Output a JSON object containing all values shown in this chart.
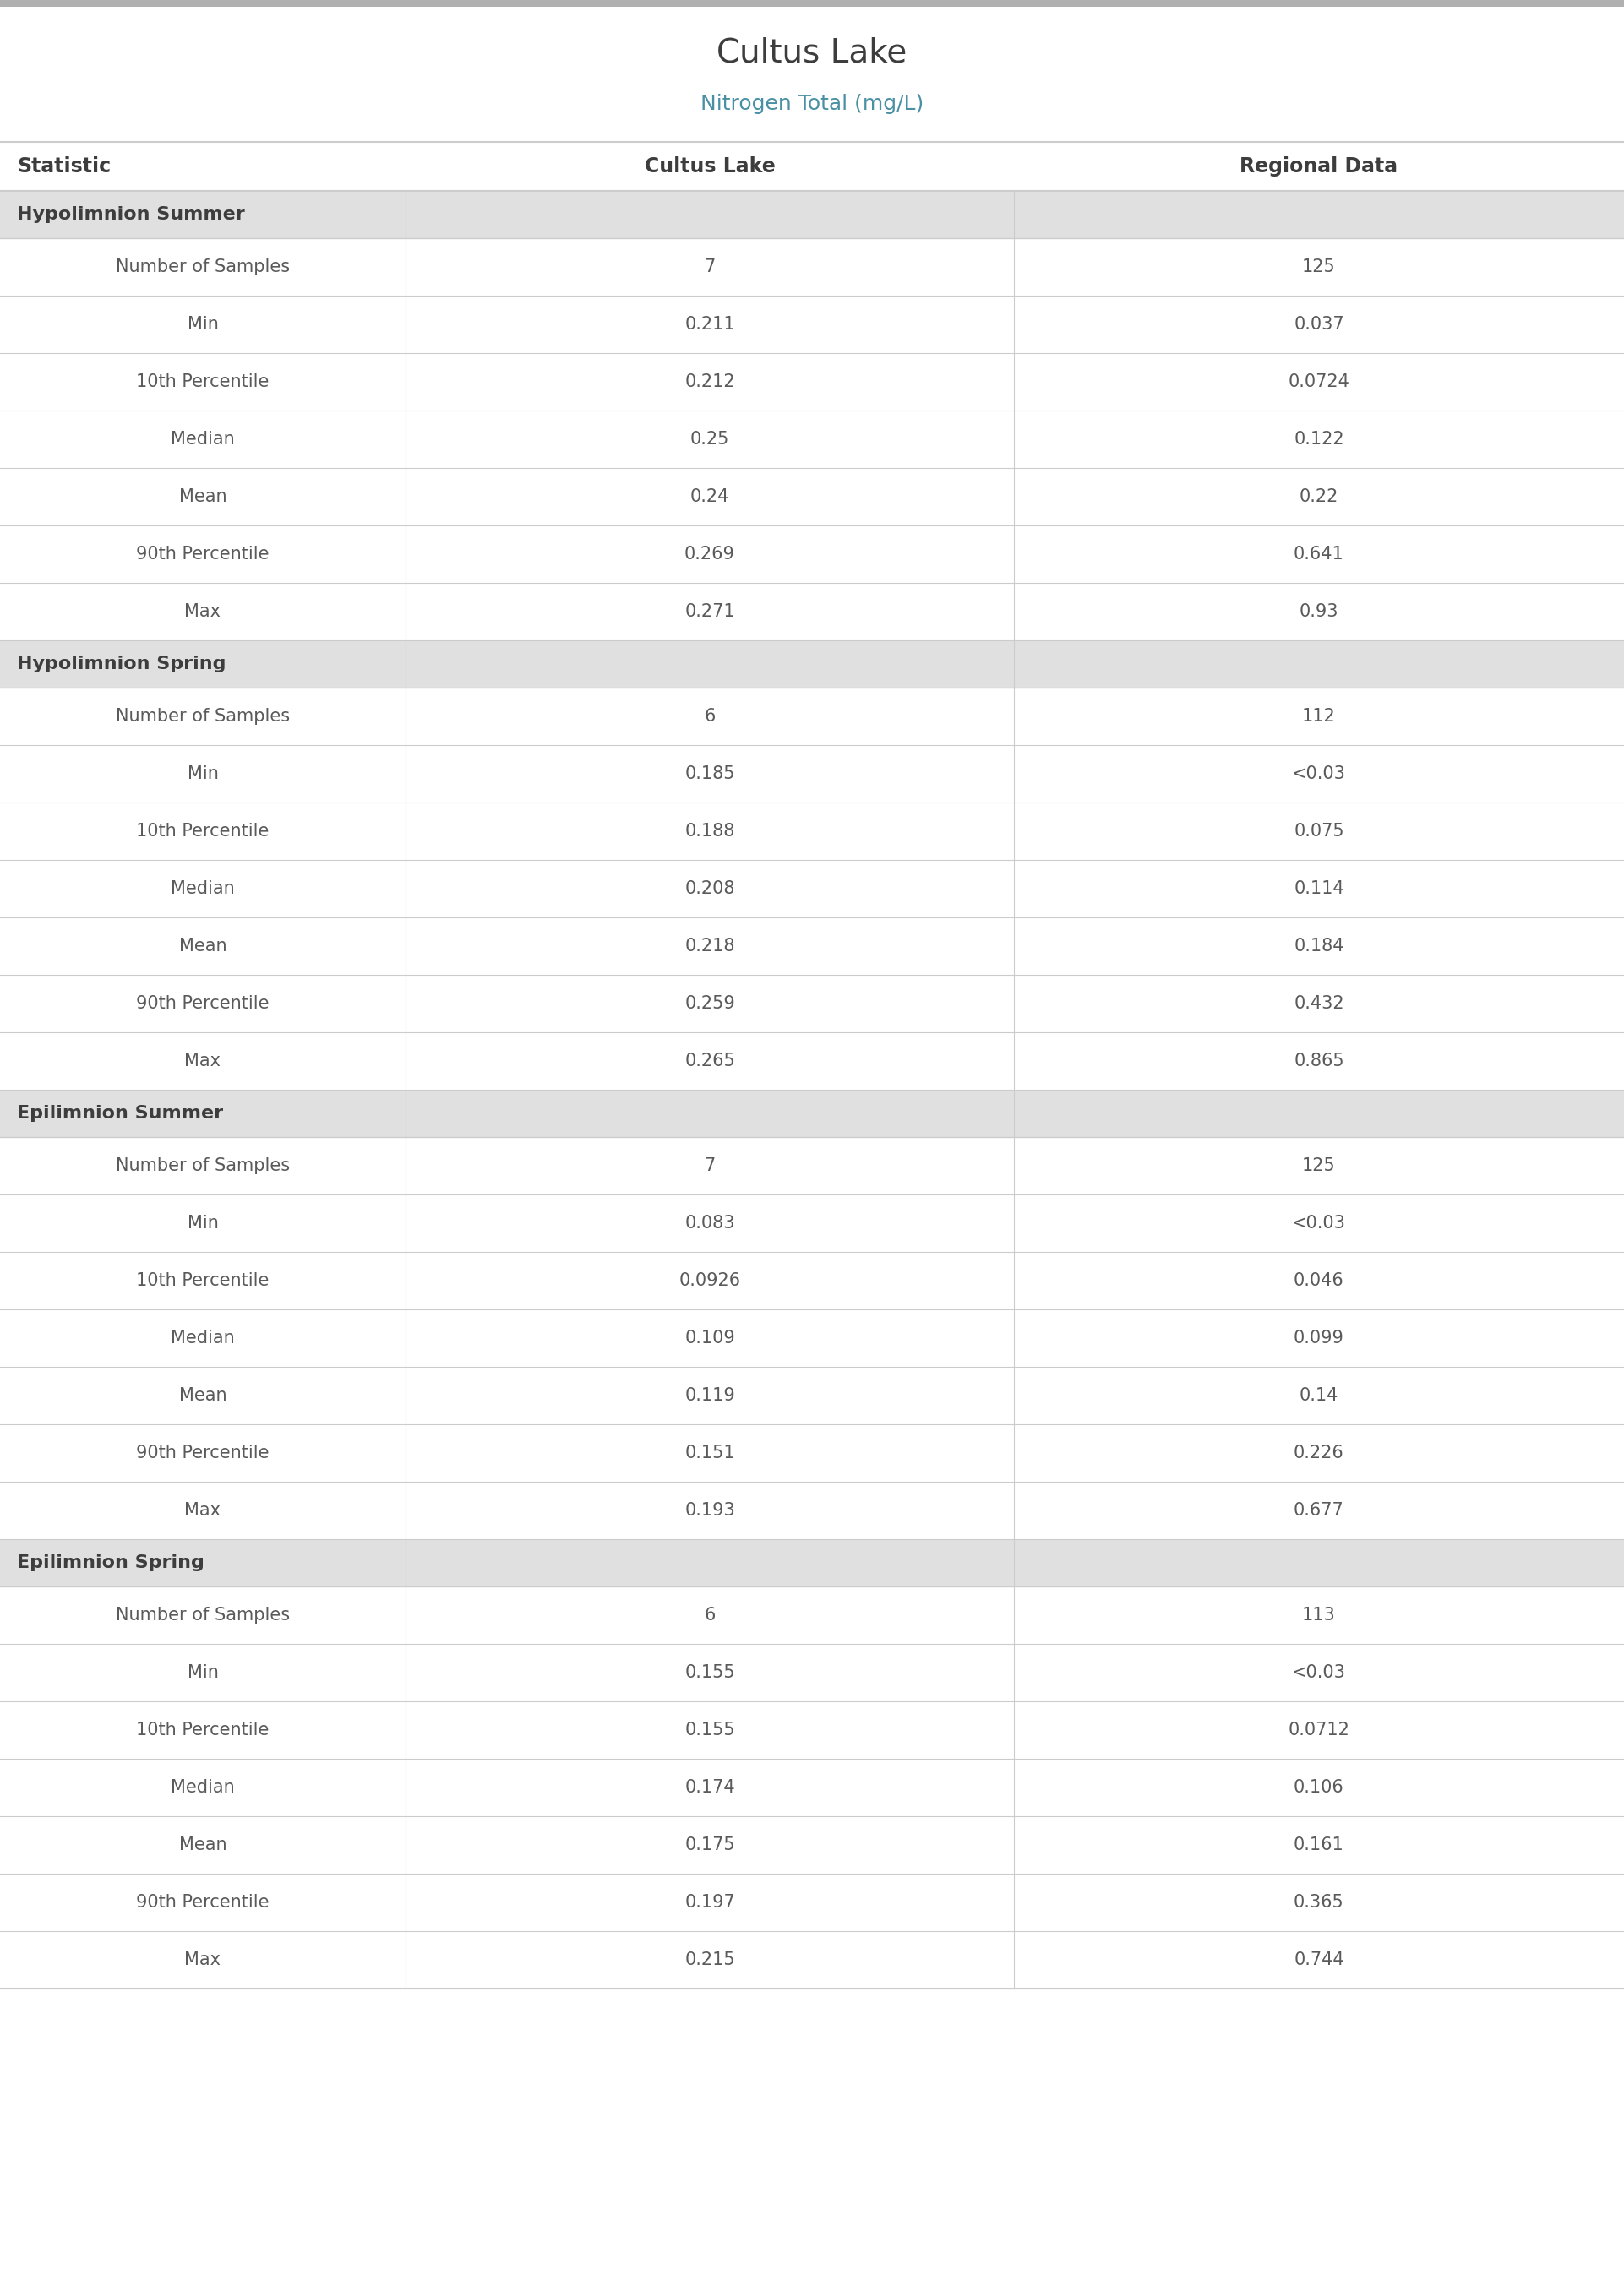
{
  "title": "Cultus Lake",
  "subtitle": "Nitrogen Total (mg/L)",
  "title_color": "#3d3d3d",
  "subtitle_color": "#4a90a4",
  "col_headers": [
    "Statistic",
    "Cultus Lake",
    "Regional Data"
  ],
  "col_header_color": "#3d3d3d",
  "sections": [
    {
      "name": "Hypolimnion Summer",
      "rows": [
        [
          "Number of Samples",
          "7",
          "125"
        ],
        [
          "Min",
          "0.211",
          "0.037"
        ],
        [
          "10th Percentile",
          "0.212",
          "0.0724"
        ],
        [
          "Median",
          "0.25",
          "0.122"
        ],
        [
          "Mean",
          "0.24",
          "0.22"
        ],
        [
          "90th Percentile",
          "0.269",
          "0.641"
        ],
        [
          "Max",
          "0.271",
          "0.93"
        ]
      ]
    },
    {
      "name": "Hypolimnion Spring",
      "rows": [
        [
          "Number of Samples",
          "6",
          "112"
        ],
        [
          "Min",
          "0.185",
          "<0.03"
        ],
        [
          "10th Percentile",
          "0.188",
          "0.075"
        ],
        [
          "Median",
          "0.208",
          "0.114"
        ],
        [
          "Mean",
          "0.218",
          "0.184"
        ],
        [
          "90th Percentile",
          "0.259",
          "0.432"
        ],
        [
          "Max",
          "0.265",
          "0.865"
        ]
      ]
    },
    {
      "name": "Epilimnion Summer",
      "rows": [
        [
          "Number of Samples",
          "7",
          "125"
        ],
        [
          "Min",
          "0.083",
          "<0.03"
        ],
        [
          "10th Percentile",
          "0.0926",
          "0.046"
        ],
        [
          "Median",
          "0.109",
          "0.099"
        ],
        [
          "Mean",
          "0.119",
          "0.14"
        ],
        [
          "90th Percentile",
          "0.151",
          "0.226"
        ],
        [
          "Max",
          "0.193",
          "0.677"
        ]
      ]
    },
    {
      "name": "Epilimnion Spring",
      "rows": [
        [
          "Number of Samples",
          "6",
          "113"
        ],
        [
          "Min",
          "0.155",
          "<0.03"
        ],
        [
          "10th Percentile",
          "0.155",
          "0.0712"
        ],
        [
          "Median",
          "0.174",
          "0.106"
        ],
        [
          "Mean",
          "0.175",
          "0.161"
        ],
        [
          "90th Percentile",
          "0.197",
          "0.365"
        ],
        [
          "Max",
          "0.215",
          "0.744"
        ]
      ]
    }
  ],
  "section_bg": "#e0e0e0",
  "divider_color": "#cccccc",
  "top_bar_color": "#b0b0b0",
  "text_color_data": "#5a5a5a",
  "text_color_stat": "#5a5a5a",
  "section_text_color": "#3d3d3d",
  "fig_bg": "#ffffff",
  "title_fontsize": 28,
  "subtitle_fontsize": 18,
  "header_fontsize": 17,
  "section_fontsize": 16,
  "data_fontsize": 15
}
